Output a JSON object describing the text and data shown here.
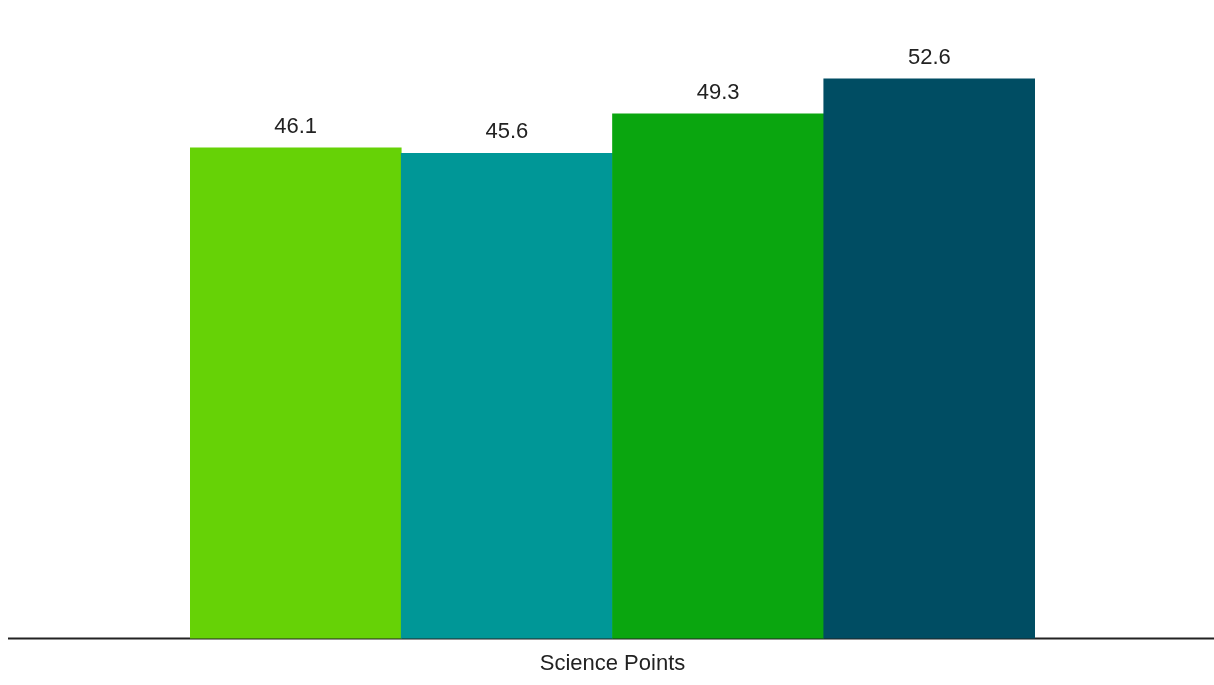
{
  "chart_data": {
    "type": "bar",
    "xlabel": "Science Points",
    "categories": [
      null,
      null,
      null,
      null
    ],
    "values": [
      46.1,
      45.6,
      49.3,
      52.6
    ],
    "colors": [
      "#66d206",
      "#009797",
      "#0aa60f",
      "#004d63"
    ],
    "data_labels": true,
    "grid": false,
    "legend": false
  }
}
